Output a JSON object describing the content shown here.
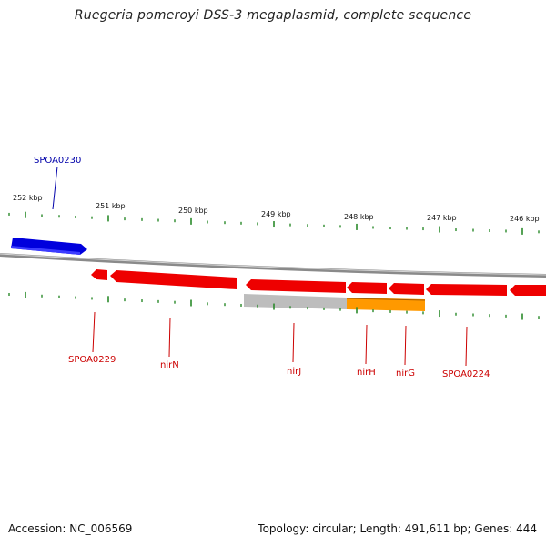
{
  "title": "Ruegeria pomeroyi DSS-3 megaplasmid, complete sequence",
  "footer": {
    "accession": "Accession: NC_006569",
    "summary": "Topology: circular; Length: 491,611 bp; Genes: 444"
  },
  "colors": {
    "backbone": "#8a8a8a",
    "forward_gene": "#0000dd",
    "reverse_gene": "#ee0000",
    "gray_feature": "#bdbdbd",
    "orange_feature": "#ff9900",
    "ticks": "#2a8a2a",
    "forward_label": "#0000aa",
    "reverse_label": "#cc0000"
  },
  "scale": {
    "kbp_labels": [
      "252 kbp",
      "251 kbp",
      "250 kbp",
      "249 kbp",
      "248 kbp",
      "247 kbp",
      "246 kbp"
    ]
  },
  "genes": {
    "forward": [
      {
        "name": "SPOA0230"
      }
    ],
    "reverse": [
      {
        "name": "SPOA0229"
      },
      {
        "name": "nirN"
      },
      {
        "name": "nirJ"
      },
      {
        "name": "nirH"
      },
      {
        "name": "nirG"
      },
      {
        "name": "SPOA0224"
      }
    ]
  }
}
